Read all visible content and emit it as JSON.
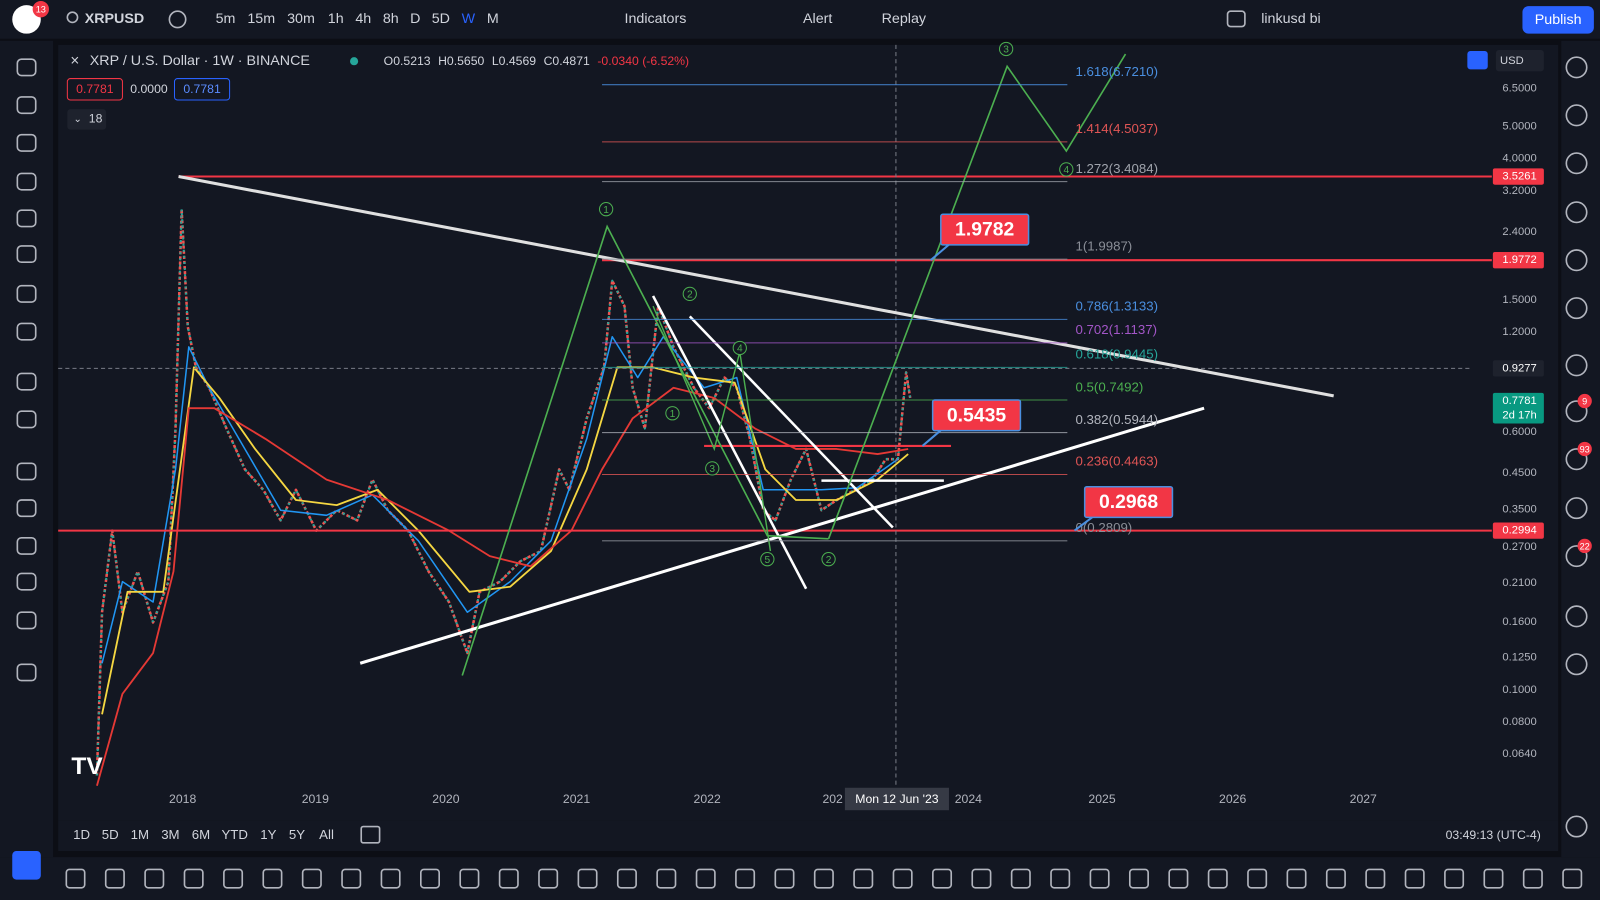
{
  "top_bar": {
    "notification_count": "13",
    "symbol": "XRPUSD",
    "intervals": [
      "5m",
      "15m",
      "30m",
      "1h",
      "4h",
      "8h",
      "D",
      "5D",
      "W",
      "M"
    ],
    "indicators": "Indicators",
    "alert": "Alert",
    "replay": "Replay",
    "layout_name": "linkusd bi",
    "publish": "Publish"
  },
  "legend": {
    "title": "XRP / U.S. Dollar · 1W · BINANCE",
    "open": "O0.5213",
    "high": "H0.5650",
    "low": "L0.4569",
    "close": "C0.4871",
    "change": "-0.0340 (-6.52%)",
    "bid": "0.7781",
    "spread": "0.0000",
    "ask": "0.7781",
    "indicators_count": "18"
  },
  "chart": {
    "currency": "USD",
    "price_ticks": [
      "6.5000",
      "5.0000",
      "4.0000",
      "3.2000",
      "2.4000",
      "1.5000",
      "1.2000",
      "0.6000",
      "0.4500",
      "0.3500",
      "0.2700",
      "0.2100",
      "0.1600",
      "0.1250",
      "0.1000",
      "0.0800",
      "0.0640"
    ],
    "price_badges": [
      {
        "text": "3.5261",
        "color": "#f23645"
      },
      {
        "text": "1.9772",
        "color": "#f23645"
      },
      {
        "text": "0.9277",
        "color": "#1e222d"
      },
      {
        "text": "0.7781",
        "sub": "2d 17h",
        "color": "#089981"
      },
      {
        "text": "0.2994",
        "color": "#f23645"
      }
    ],
    "time_ticks": [
      "2018",
      "2019",
      "2020",
      "2021",
      "2022",
      "202",
      "2024",
      "2025",
      "2026",
      "2027"
    ],
    "crosshair_date": "Mon 12 Jun '23",
    "fib_levels": [
      {
        "text": "1.618(6.7210)",
        "color": "#4a8fe0"
      },
      {
        "text": "1.414(4.5037)",
        "color": "#e05555"
      },
      {
        "text": "1.272(3.4084)",
        "color": "#a0a4ad"
      },
      {
        "text": "1(1.9987)",
        "color": "#8a8e97"
      },
      {
        "text": "0.786(1.3133)",
        "color": "#4a8fe0"
      },
      {
        "text": "0.702(1.1137)",
        "color": "#a356c8"
      },
      {
        "text": "0.618(0.9445)",
        "color": "#26a69a"
      },
      {
        "text": "0.5(0.7492)",
        "color": "#4caf50"
      },
      {
        "text": "0.382(0.5944)",
        "color": "#b2b5be"
      },
      {
        "text": "0.236(0.4463)",
        "color": "#e05555"
      },
      {
        "text": "0(0.2809)",
        "color": "#8a8e97"
      }
    ],
    "wave_labels": [
      "3",
      "1",
      "2",
      "4",
      "1",
      "3",
      "5",
      "2",
      "4"
    ],
    "callouts": [
      "1.9782",
      "0.5435",
      "0.2968"
    ]
  },
  "bottom_bar": {
    "ranges": [
      "1D",
      "5D",
      "1M",
      "3M",
      "6M",
      "YTD",
      "1Y",
      "5Y",
      "All"
    ],
    "clock": "03:49:13 (UTC-4)"
  },
  "right_badges": [
    "9",
    "93",
    "22"
  ]
}
